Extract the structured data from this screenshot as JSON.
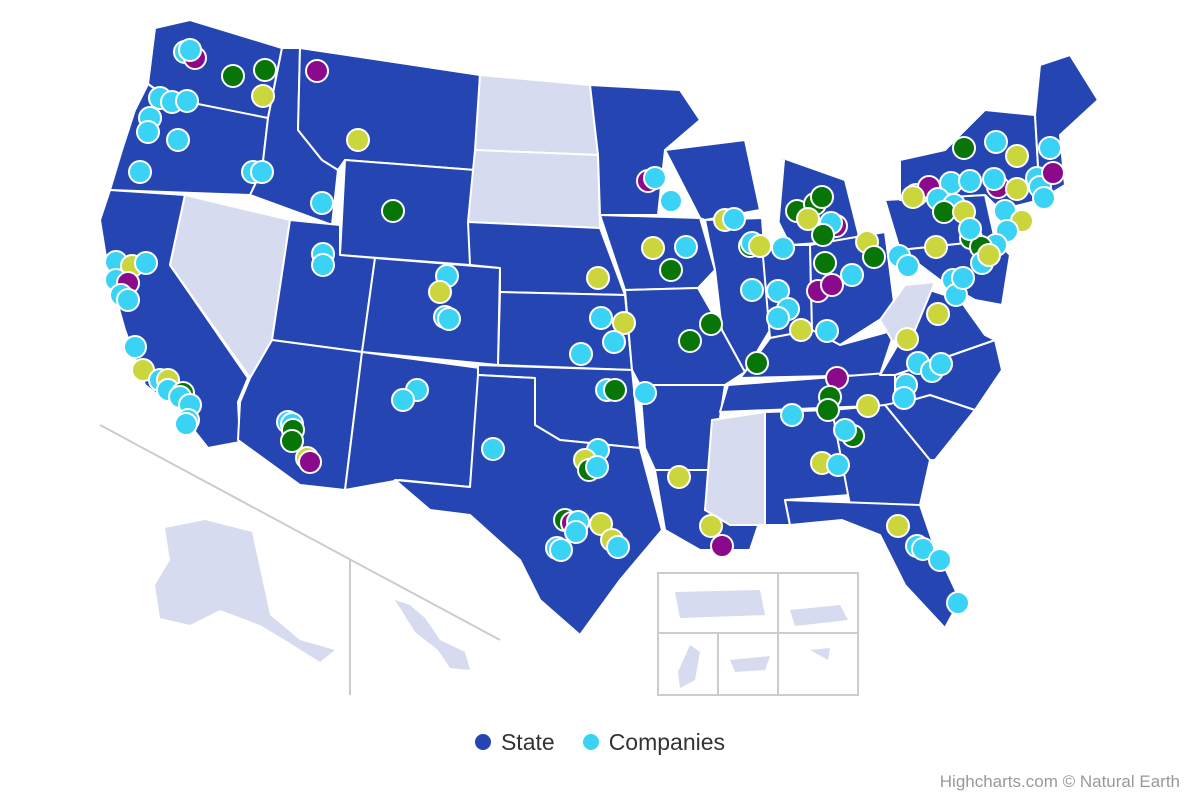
{
  "colors": {
    "state_fill": "#2545b3",
    "no_data_fill": "#d6dbef",
    "inset_border": "#cccccc",
    "dots": {
      "cyan": "#3bd3f5",
      "green": "#087508",
      "lime": "#cbd63d",
      "purple": "#8b0a8b"
    }
  },
  "legend": {
    "items": [
      {
        "label": "State",
        "color": "#2545b3"
      },
      {
        "label": "Companies",
        "color": "#3bd3f5"
      }
    ]
  },
  "credits": "Highcharts.com © Natural Earth"
}
